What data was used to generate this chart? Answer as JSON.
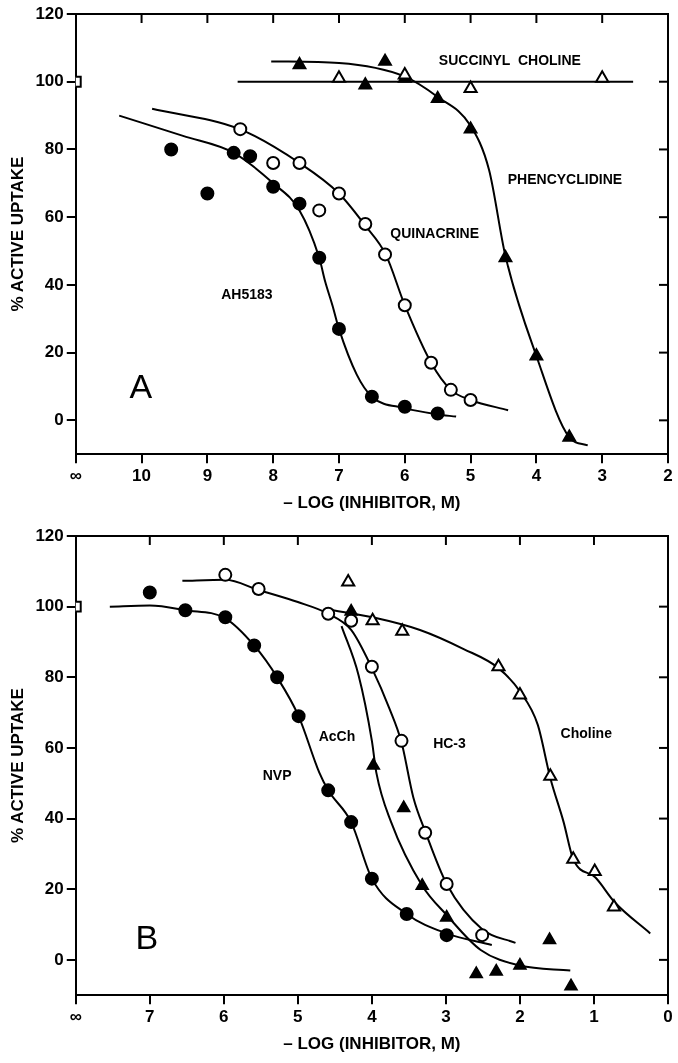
{
  "chart_data": [
    {
      "type": "scatter",
      "xlabel": "– LOG (INHIBITOR, M)",
      "ylabel": "% ACTIVE UPTAKE",
      "xlim": [
        11,
        2
      ],
      "ylim": [
        -10,
        120
      ],
      "xticks": [
        {
          "value": 11,
          "label": "∞"
        },
        10,
        9,
        8,
        7,
        6,
        5,
        4,
        3,
        2
      ],
      "yticks": [
        0,
        20,
        40,
        60,
        80,
        100,
        120
      ],
      "annotations": [
        "A",
        "SUCCINYL  CHOLINE",
        "PHENCYCLIDINE",
        "QUINACRINE",
        "AH5183"
      ],
      "series": [
        {
          "type": "scatter",
          "marker": "square",
          "color": "#ffffff",
          "x": [
            11
          ],
          "values": [
            100
          ]
        },
        {
          "type": "scatter",
          "marker": "circle",
          "color": "#000000",
          "x": [
            9.55,
            9,
            8.6,
            8.35,
            8,
            7.6,
            7.3,
            7,
            6.5,
            6,
            5.5
          ],
          "values": [
            80,
            67,
            79,
            78,
            69,
            64,
            48,
            27,
            7,
            4,
            2
          ]
        },
        {
          "type": "scatter",
          "marker": "circle",
          "color": "#ffffff",
          "x": [
            8.5,
            8,
            7.6,
            7.3,
            7,
            6.6,
            6.3,
            6,
            5.6,
            5.3,
            5
          ],
          "values": [
            86,
            76,
            76,
            62,
            67,
            58,
            49,
            34,
            17,
            9,
            6
          ]
        },
        {
          "type": "scatter",
          "marker": "triangle",
          "color": "#000000",
          "x": [
            7.6,
            6.6,
            6.3,
            6,
            5.5,
            5,
            4.47,
            4,
            3.5
          ],
          "values": [
            105,
            99,
            106,
            101,
            95,
            86,
            48,
            19,
            -5
          ]
        },
        {
          "type": "scatter",
          "marker": "triangle",
          "color": "#ffffff",
          "x": [
            7,
            6,
            5,
            3
          ],
          "values": [
            101,
            102,
            98,
            101
          ]
        },
        {
          "type": "line",
          "marker": "none",
          "line_style": "solid",
          "color": "#000000",
          "x": [
            10.34,
            9.37,
            8.6,
            8,
            7.6,
            7.3,
            7.21,
            7.1,
            7,
            6.73,
            6.5,
            6,
            5.52,
            5.22
          ],
          "values": [
            90,
            84,
            79,
            70,
            62,
            48,
            41,
            34,
            27,
            13.5,
            7,
            3.6,
            1.8,
            1.1
          ]
        },
        {
          "type": "line",
          "marker": "none",
          "line_style": "solid",
          "color": "#000000",
          "x": [
            9.84,
            8.51,
            7.6,
            7,
            6.6,
            6.29,
            6,
            5.6,
            5.3,
            5,
            4.43
          ],
          "values": [
            92,
            86,
            76,
            67,
            57.5,
            49,
            34,
            17,
            9,
            6,
            3
          ]
        },
        {
          "type": "line",
          "marker": "none",
          "line_style": "solid",
          "color": "#000000",
          "x": [
            8.03,
            7,
            6,
            5.5,
            5,
            4.72,
            4.47,
            4,
            3.5,
            3.22
          ],
          "values": [
            106,
            105.5,
            101.5,
            95.5,
            87,
            74,
            48.5,
            19,
            -5,
            -7.4
          ]
        },
        {
          "type": "line",
          "marker": "none",
          "line_style": "solid",
          "color": "#000000",
          "x": [
            8.54,
            2.53
          ],
          "values": [
            100,
            100
          ]
        }
      ]
    },
    {
      "type": "scatter",
      "xlabel": "– LOG (INHIBITOR, M)",
      "ylabel": "% ACTIVE UPTAKE",
      "xlim": [
        8,
        0
      ],
      "ylim": [
        -10,
        120
      ],
      "xticks": [
        {
          "value": 8,
          "label": "∞"
        },
        7,
        6,
        5,
        4,
        3,
        2,
        1,
        0
      ],
      "yticks": [
        0,
        20,
        40,
        60,
        80,
        100,
        120
      ],
      "annotations": [
        "B",
        "NVP",
        "AcCh",
        "HC-3",
        "Choline"
      ],
      "series": [
        {
          "type": "scatter",
          "marker": "square",
          "color": "#ffffff",
          "x": [
            8
          ],
          "values": [
            100
          ]
        },
        {
          "type": "scatter",
          "marker": "circle",
          "color": "#000000",
          "x": [
            7,
            6.52,
            5.98,
            5.59,
            5.28,
            4.99,
            4.59,
            4.28,
            4,
            3.53,
            2.99
          ],
          "values": [
            104,
            99,
            97,
            89,
            80,
            69,
            48,
            39,
            23,
            13,
            7
          ]
        },
        {
          "type": "scatter",
          "marker": "triangle",
          "color": "#000000",
          "x": [
            4.28,
            3.98,
            3.57,
            3.32,
            2.99,
            2.59,
            2.32,
            2,
            1.6,
            1.31
          ],
          "values": [
            98.6,
            55,
            43,
            21,
            12,
            -4,
            -3.3,
            -1.6,
            5.6,
            -7.5
          ]
        },
        {
          "type": "scatter",
          "marker": "circle",
          "color": "#ffffff",
          "x": [
            5.98,
            5.53,
            4.59,
            4.28,
            4,
            3.6,
            3.28,
            2.99,
            2.51
          ],
          "values": [
            109,
            105,
            98,
            96,
            83,
            62,
            36,
            21.5,
            7
          ]
        },
        {
          "type": "scatter",
          "marker": "triangle",
          "color": "#ffffff",
          "x": [
            4.32,
            3.99,
            3.59,
            2.29,
            2,
            1.59,
            1.28,
            0.99,
            0.73
          ],
          "values": [
            107,
            96,
            93,
            83,
            75,
            52,
            28.5,
            25,
            15
          ]
        },
        {
          "type": "line",
          "marker": "none",
          "line_style": "solid",
          "color": "#000000",
          "x": [
            7.54,
            7,
            6.52,
            5.98,
            5.59,
            5.28,
            4.99,
            4.71,
            4.59,
            4.28,
            4,
            3.53,
            2.99,
            2.38
          ],
          "values": [
            100,
            100.3,
            99,
            96.7,
            89,
            80,
            69,
            53,
            48,
            39,
            23,
            13,
            7.5,
            4.2
          ]
        },
        {
          "type": "line",
          "marker": "none",
          "line_style": "solid",
          "color": "#000000",
          "x": [
            4.41,
            4.18,
            4,
            3.94,
            3.74,
            3.32,
            2.99,
            2.53,
            2,
            1.32
          ],
          "values": [
            94.5,
            80.6,
            62,
            53,
            39,
            21,
            12.7,
            2.8,
            -1.6,
            -3
          ]
        },
        {
          "type": "line",
          "marker": "none",
          "line_style": "solid",
          "color": "#000000",
          "x": [
            6.56,
            5.98,
            5.53,
            5,
            4.59,
            4.28,
            4,
            3.76,
            3.6,
            3.44,
            3.28,
            2.99,
            2.51,
            2.06
          ],
          "values": [
            107.3,
            107.6,
            104.7,
            101.3,
            98,
            93.4,
            82.6,
            71,
            61.6,
            46,
            36.4,
            21.5,
            8.7,
            4.8
          ]
        },
        {
          "type": "line",
          "marker": "none",
          "line_style": "solid",
          "color": "#000000",
          "x": [
            4.59,
            3.99,
            3.35,
            2.76,
            2.29,
            2,
            1.76,
            1.59,
            1.41,
            1.28,
            0.98,
            0.72,
            0.24
          ],
          "values": [
            99.2,
            97,
            93.4,
            88,
            82.6,
            76,
            66.6,
            51.5,
            39,
            28.5,
            23.3,
            16.3,
            7.5
          ]
        }
      ]
    }
  ]
}
